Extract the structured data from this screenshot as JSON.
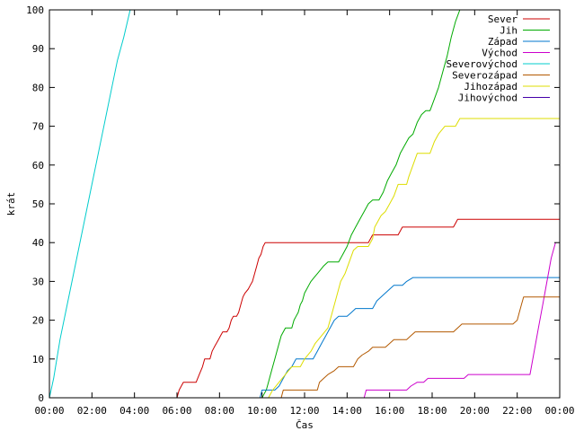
{
  "chart_data": {
    "type": "line",
    "xlabel": "Čas",
    "ylabel": "krát",
    "xlim": [
      0,
      24
    ],
    "ylim": [
      0,
      100
    ],
    "x_ticks": [
      {
        "value": 0,
        "label": "00:00"
      },
      {
        "value": 2,
        "label": "02:00"
      },
      {
        "value": 4,
        "label": "04:00"
      },
      {
        "value": 6,
        "label": "06:00"
      },
      {
        "value": 8,
        "label": "08:00"
      },
      {
        "value": 10,
        "label": "10:00"
      },
      {
        "value": 12,
        "label": "12:00"
      },
      {
        "value": 14,
        "label": "14:00"
      },
      {
        "value": 16,
        "label": "16:00"
      },
      {
        "value": 18,
        "label": "18:00"
      },
      {
        "value": 20,
        "label": "20:00"
      },
      {
        "value": 22,
        "label": "22:00"
      },
      {
        "value": 24,
        "label": "00:00"
      }
    ],
    "y_ticks": [
      {
        "value": 0,
        "label": "0"
      },
      {
        "value": 10,
        "label": "10"
      },
      {
        "value": 20,
        "label": "20"
      },
      {
        "value": 30,
        "label": "30"
      },
      {
        "value": 40,
        "label": "40"
      },
      {
        "value": 50,
        "label": "50"
      },
      {
        "value": 60,
        "label": "60"
      },
      {
        "value": 70,
        "label": "70"
      },
      {
        "value": 80,
        "label": "80"
      },
      {
        "value": 90,
        "label": "90"
      },
      {
        "value": 100,
        "label": "100"
      }
    ],
    "grid": false,
    "legend_position": "top-right",
    "series": [
      {
        "name": "Sever",
        "color": "#cc0000",
        "points": [
          [
            0,
            0
          ],
          [
            6.0,
            0
          ],
          [
            6.1,
            2
          ],
          [
            6.3,
            4
          ],
          [
            6.9,
            4
          ],
          [
            7.05,
            6
          ],
          [
            7.2,
            8
          ],
          [
            7.3,
            10
          ],
          [
            7.55,
            10
          ],
          [
            7.65,
            12
          ],
          [
            7.75,
            13
          ],
          [
            7.85,
            14
          ],
          [
            7.95,
            15
          ],
          [
            8.05,
            16
          ],
          [
            8.15,
            17
          ],
          [
            8.35,
            17
          ],
          [
            8.45,
            18
          ],
          [
            8.55,
            20
          ],
          [
            8.65,
            21
          ],
          [
            8.8,
            21
          ],
          [
            8.9,
            22
          ],
          [
            9.0,
            24
          ],
          [
            9.1,
            26
          ],
          [
            9.2,
            27
          ],
          [
            9.35,
            28
          ],
          [
            9.45,
            29
          ],
          [
            9.55,
            30
          ],
          [
            9.65,
            32
          ],
          [
            9.75,
            34
          ],
          [
            9.85,
            36
          ],
          [
            9.95,
            37
          ],
          [
            10.05,
            39
          ],
          [
            10.15,
            40
          ],
          [
            15.0,
            40
          ],
          [
            15.2,
            42
          ],
          [
            16.4,
            42
          ],
          [
            16.6,
            44
          ],
          [
            19.0,
            44
          ],
          [
            19.2,
            46
          ],
          [
            24.0,
            46
          ]
        ]
      },
      {
        "name": "Jih",
        "color": "#00aa00",
        "points": [
          [
            10.0,
            0
          ],
          [
            10.1,
            1
          ],
          [
            10.2,
            2
          ],
          [
            10.3,
            4
          ],
          [
            10.4,
            6
          ],
          [
            10.5,
            8
          ],
          [
            10.6,
            10
          ],
          [
            10.7,
            12
          ],
          [
            10.8,
            14
          ],
          [
            10.9,
            16
          ],
          [
            11.0,
            17
          ],
          [
            11.1,
            18
          ],
          [
            11.4,
            18
          ],
          [
            11.5,
            20
          ],
          [
            11.6,
            21
          ],
          [
            11.7,
            22
          ],
          [
            11.8,
            24
          ],
          [
            11.9,
            25
          ],
          [
            12.0,
            27
          ],
          [
            12.1,
            28
          ],
          [
            12.2,
            29
          ],
          [
            12.3,
            30
          ],
          [
            12.45,
            31
          ],
          [
            12.6,
            32
          ],
          [
            12.75,
            33
          ],
          [
            12.9,
            34
          ],
          [
            13.1,
            35
          ],
          [
            13.6,
            35
          ],
          [
            13.8,
            37
          ],
          [
            14.0,
            39
          ],
          [
            14.2,
            42
          ],
          [
            14.4,
            44
          ],
          [
            14.6,
            46
          ],
          [
            14.8,
            48
          ],
          [
            15.0,
            50
          ],
          [
            15.2,
            51
          ],
          [
            15.5,
            51
          ],
          [
            15.7,
            53
          ],
          [
            15.9,
            56
          ],
          [
            16.1,
            58
          ],
          [
            16.3,
            60
          ],
          [
            16.5,
            63
          ],
          [
            16.7,
            65
          ],
          [
            16.9,
            67
          ],
          [
            17.1,
            68
          ],
          [
            17.3,
            71
          ],
          [
            17.5,
            73
          ],
          [
            17.7,
            74
          ],
          [
            17.9,
            74
          ],
          [
            18.1,
            77
          ],
          [
            18.3,
            80
          ],
          [
            18.5,
            84
          ],
          [
            18.7,
            88
          ],
          [
            18.9,
            93
          ],
          [
            19.1,
            97
          ],
          [
            19.3,
            100
          ]
        ]
      },
      {
        "name": "Západ",
        "color": "#0077cc",
        "points": [
          [
            9.9,
            0
          ],
          [
            10.0,
            2
          ],
          [
            10.6,
            2
          ],
          [
            10.8,
            3
          ],
          [
            11.0,
            5
          ],
          [
            11.2,
            7
          ],
          [
            11.4,
            8
          ],
          [
            11.6,
            10
          ],
          [
            12.4,
            10
          ],
          [
            12.6,
            12
          ],
          [
            12.8,
            14
          ],
          [
            13.0,
            16
          ],
          [
            13.2,
            18
          ],
          [
            13.4,
            20
          ],
          [
            13.6,
            21
          ],
          [
            14.0,
            21
          ],
          [
            14.2,
            22
          ],
          [
            14.4,
            23
          ],
          [
            15.2,
            23
          ],
          [
            15.4,
            25
          ],
          [
            15.8,
            27
          ],
          [
            16.0,
            28
          ],
          [
            16.2,
            29
          ],
          [
            16.6,
            29
          ],
          [
            16.8,
            30
          ],
          [
            17.1,
            31
          ],
          [
            24.0,
            31
          ]
        ]
      },
      {
        "name": "Východ",
        "color": "#cc00cc",
        "points": [
          [
            14.8,
            0
          ],
          [
            14.9,
            2
          ],
          [
            16.8,
            2
          ],
          [
            17.0,
            3
          ],
          [
            17.3,
            4
          ],
          [
            17.6,
            4
          ],
          [
            17.8,
            5
          ],
          [
            19.5,
            5
          ],
          [
            19.7,
            6
          ],
          [
            22.6,
            6
          ],
          [
            22.8,
            12
          ],
          [
            23.0,
            18
          ],
          [
            23.2,
            24
          ],
          [
            23.4,
            30
          ],
          [
            23.6,
            36
          ],
          [
            23.8,
            40
          ]
        ]
      },
      {
        "name": "Severovýchod",
        "color": "#00cccc",
        "points": [
          [
            0,
            0
          ],
          [
            0.2,
            5
          ],
          [
            0.5,
            15
          ],
          [
            0.8,
            23
          ],
          [
            1.1,
            31
          ],
          [
            1.4,
            39
          ],
          [
            1.7,
            47
          ],
          [
            2.0,
            55
          ],
          [
            2.3,
            63
          ],
          [
            2.6,
            71
          ],
          [
            2.9,
            79
          ],
          [
            3.2,
            87
          ],
          [
            3.5,
            93
          ],
          [
            3.8,
            100
          ]
        ]
      },
      {
        "name": "Severozápad",
        "color": "#b35900",
        "points": [
          [
            10.9,
            0
          ],
          [
            11.0,
            2
          ],
          [
            12.6,
            2
          ],
          [
            12.7,
            4
          ],
          [
            12.9,
            5
          ],
          [
            13.1,
            6
          ],
          [
            13.4,
            7
          ],
          [
            13.6,
            8
          ],
          [
            14.3,
            8
          ],
          [
            14.5,
            10
          ],
          [
            14.7,
            11
          ],
          [
            15.0,
            12
          ],
          [
            15.2,
            13
          ],
          [
            15.8,
            13
          ],
          [
            16.0,
            14
          ],
          [
            16.2,
            15
          ],
          [
            16.8,
            15
          ],
          [
            17.0,
            16
          ],
          [
            17.2,
            17
          ],
          [
            19.0,
            17
          ],
          [
            19.2,
            18
          ],
          [
            19.4,
            19
          ],
          [
            21.8,
            19
          ],
          [
            22.0,
            20
          ],
          [
            22.1,
            22
          ],
          [
            22.2,
            24
          ],
          [
            22.3,
            26
          ],
          [
            24.0,
            26
          ]
        ]
      },
      {
        "name": "Jihozápad",
        "color": "#dddd00",
        "points": [
          [
            10.3,
            0
          ],
          [
            10.5,
            2
          ],
          [
            10.8,
            4
          ],
          [
            11.1,
            6
          ],
          [
            11.4,
            8
          ],
          [
            11.8,
            8
          ],
          [
            12.0,
            10
          ],
          [
            12.3,
            12
          ],
          [
            12.5,
            14
          ],
          [
            12.8,
            16
          ],
          [
            13.1,
            18
          ],
          [
            13.3,
            22
          ],
          [
            13.5,
            26
          ],
          [
            13.7,
            30
          ],
          [
            13.9,
            32
          ],
          [
            14.1,
            35
          ],
          [
            14.3,
            38
          ],
          [
            14.5,
            39
          ],
          [
            15.0,
            39
          ],
          [
            15.2,
            41
          ],
          [
            15.3,
            44
          ],
          [
            15.6,
            47
          ],
          [
            15.8,
            48
          ],
          [
            16.0,
            50
          ],
          [
            16.2,
            52
          ],
          [
            16.4,
            55
          ],
          [
            16.8,
            55
          ],
          [
            16.9,
            57
          ],
          [
            17.1,
            60
          ],
          [
            17.3,
            63
          ],
          [
            17.9,
            63
          ],
          [
            18.1,
            66
          ],
          [
            18.3,
            68
          ],
          [
            18.6,
            70
          ],
          [
            19.1,
            70
          ],
          [
            19.3,
            72
          ],
          [
            24.0,
            72
          ]
        ]
      },
      {
        "name": "Jihovýchod",
        "color": "#4400aa",
        "points": []
      }
    ]
  }
}
